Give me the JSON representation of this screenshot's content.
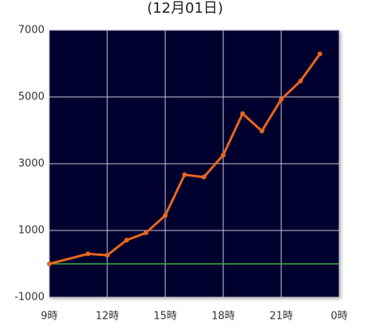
{
  "chart_data": {
    "type": "line",
    "title": "(12月01日)",
    "x": [
      9,
      11,
      12,
      13,
      14,
      15,
      16,
      17,
      18,
      19,
      20,
      21,
      22,
      23
    ],
    "series": [
      {
        "color": "#e8661c",
        "values": [
          0,
          300,
          260,
          710,
          930,
          1450,
          2670,
          2600,
          3260,
          4500,
          3980,
          4930,
          5480,
          6290
        ]
      }
    ],
    "xlim": [
      9,
      24
    ],
    "xticks": [
      {
        "value": 9,
        "label": "9時"
      },
      {
        "value": 12,
        "label": "12時"
      },
      {
        "value": 15,
        "label": "15時"
      },
      {
        "value": 18,
        "label": "18時"
      },
      {
        "value": 21,
        "label": "21時"
      },
      {
        "value": 24,
        "label": "0時"
      }
    ],
    "ylim": [
      -1000,
      7000
    ],
    "yticks": [
      -1000,
      1000,
      3000,
      5000,
      7000
    ],
    "grid": true,
    "background": "#00002e",
    "reference_line": {
      "value": 0,
      "color": "#3cb043"
    }
  }
}
